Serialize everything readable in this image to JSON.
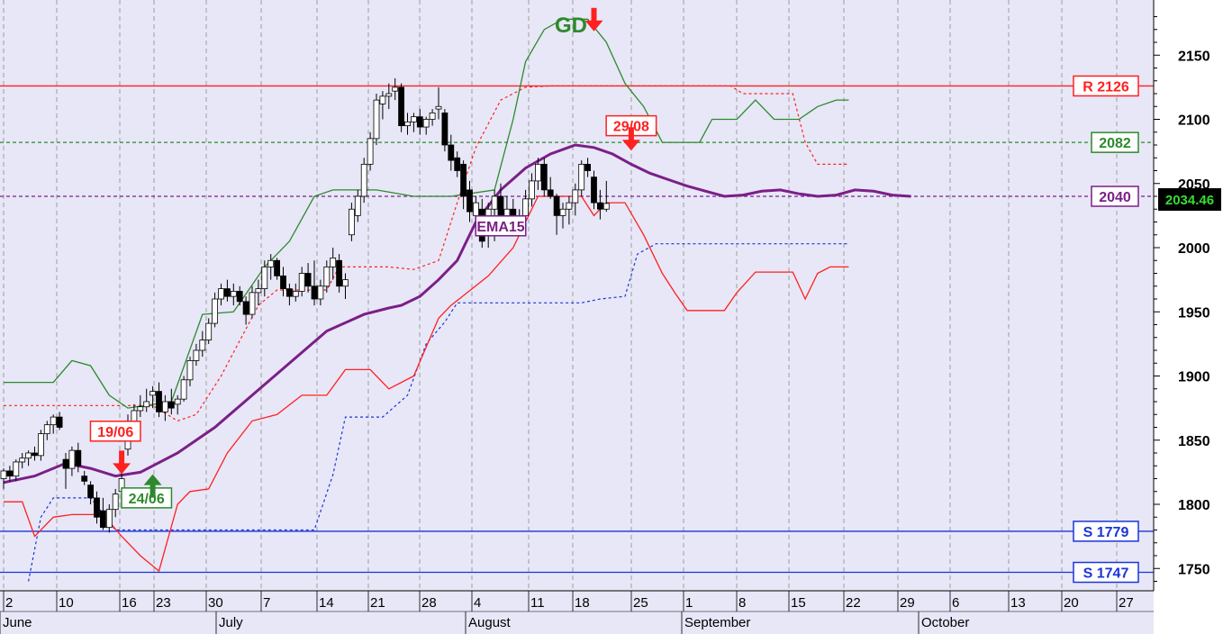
{
  "chart_data": {
    "type": "candlestick",
    "title": "",
    "xlabel": "",
    "ylabel": "",
    "ylim": [
      1735,
      2190
    ],
    "yticks": [
      1750,
      1800,
      1850,
      1900,
      1950,
      2000,
      2050,
      2100,
      2150
    ],
    "day_ticks": [
      "2",
      "10",
      "16",
      "23",
      "30",
      "7",
      "14",
      "21",
      "28",
      "4",
      "11",
      "18",
      "25",
      "1",
      "8",
      "15",
      "22",
      "29",
      "6",
      "13",
      "20",
      "27"
    ],
    "months": [
      "June",
      "July",
      "August",
      "September",
      "October"
    ],
    "last_price": "2034.46",
    "candles": [
      [
        1820,
        1828,
        1812,
        1826
      ],
      [
        1826,
        1830,
        1818,
        1822
      ],
      [
        1822,
        1835,
        1818,
        1833
      ],
      [
        1833,
        1840,
        1828,
        1836
      ],
      [
        1836,
        1842,
        1830,
        1840
      ],
      [
        1840,
        1845,
        1834,
        1838
      ],
      [
        1838,
        1858,
        1834,
        1855
      ],
      [
        1855,
        1865,
        1850,
        1862
      ],
      [
        1862,
        1870,
        1855,
        1868
      ],
      [
        1868,
        1872,
        1858,
        1860
      ],
      [
        1835,
        1840,
        1812,
        1828
      ],
      [
        1828,
        1845,
        1822,
        1842
      ],
      [
        1842,
        1848,
        1825,
        1830
      ],
      [
        1822,
        1826,
        1815,
        1818
      ],
      [
        1815,
        1818,
        1800,
        1805
      ],
      [
        1805,
        1810,
        1785,
        1790
      ],
      [
        1795,
        1805,
        1780,
        1782
      ],
      [
        1782,
        1800,
        1778,
        1796
      ],
      [
        1796,
        1812,
        1790,
        1808
      ],
      [
        1810,
        1825,
        1805,
        1820
      ],
      [
        1843,
        1870,
        1838,
        1865
      ],
      [
        1865,
        1878,
        1860,
        1873
      ],
      [
        1873,
        1885,
        1868,
        1876
      ],
      [
        1876,
        1890,
        1872,
        1880
      ],
      [
        1885,
        1892,
        1875,
        1888
      ],
      [
        1888,
        1895,
        1868,
        1872
      ],
      [
        1872,
        1885,
        1865,
        1880
      ],
      [
        1880,
        1890,
        1870,
        1875
      ],
      [
        1878,
        1885,
        1870,
        1882
      ],
      [
        1882,
        1900,
        1880,
        1897
      ],
      [
        1897,
        1915,
        1892,
        1912
      ],
      [
        1912,
        1925,
        1908,
        1920
      ],
      [
        1920,
        1935,
        1915,
        1928
      ],
      [
        1928,
        1945,
        1925,
        1941
      ],
      [
        1941,
        1965,
        1938,
        1960
      ],
      [
        1960,
        1972,
        1955,
        1968
      ],
      [
        1968,
        1975,
        1958,
        1962
      ],
      [
        1962,
        1972,
        1955,
        1966
      ],
      [
        1966,
        1970,
        1955,
        1958
      ],
      [
        1958,
        1962,
        1940,
        1948
      ],
      [
        1948,
        1970,
        1945,
        1965
      ],
      [
        1965,
        1975,
        1955,
        1968
      ],
      [
        1968,
        1990,
        1962,
        1985
      ],
      [
        1985,
        1995,
        1975,
        1990
      ],
      [
        1990,
        1992,
        1975,
        1978
      ],
      [
        1978,
        1985,
        1962,
        1968
      ],
      [
        1968,
        1972,
        1955,
        1962
      ],
      [
        1962,
        1972,
        1958,
        1966
      ],
      [
        1966,
        1985,
        1962,
        1980
      ],
      [
        1980,
        1988,
        1965,
        1970
      ],
      [
        1970,
        1990,
        1955,
        1960
      ],
      [
        1960,
        1975,
        1955,
        1970
      ],
      [
        1970,
        1990,
        1965,
        1985
      ],
      [
        1985,
        2000,
        1975,
        1992
      ],
      [
        1990,
        1995,
        1965,
        1970
      ],
      [
        1970,
        1980,
        1960,
        1975
      ],
      [
        2010,
        2035,
        2005,
        2030
      ],
      [
        2025,
        2045,
        2020,
        2040
      ],
      [
        2040,
        2070,
        2035,
        2065
      ],
      [
        2065,
        2090,
        2060,
        2085
      ],
      [
        2085,
        2120,
        2080,
        2115
      ],
      [
        2112,
        2122,
        2100,
        2118
      ],
      [
        2118,
        2128,
        2108,
        2120
      ],
      [
        2122,
        2132,
        2115,
        2125
      ],
      [
        2125,
        2128,
        2090,
        2095
      ],
      [
        2095,
        2105,
        2088,
        2098
      ],
      [
        2098,
        2105,
        2090,
        2102
      ],
      [
        2102,
        2108,
        2088,
        2094
      ],
      [
        2094,
        2102,
        2088,
        2100
      ],
      [
        2100,
        2108,
        2095,
        2105
      ],
      [
        2108,
        2125,
        2100,
        2110
      ],
      [
        2105,
        2108,
        2075,
        2080
      ],
      [
        2080,
        2088,
        2060,
        2068
      ],
      [
        2070,
        2075,
        2055,
        2060
      ],
      [
        2065,
        2068,
        2030,
        2040
      ],
      [
        2045,
        2052,
        2020,
        2028
      ],
      [
        2025,
        2040,
        2018,
        2035
      ],
      [
        2030,
        2038,
        2000,
        2005
      ],
      [
        2010,
        2035,
        2000,
        2030
      ],
      [
        2030,
        2045,
        2005,
        2040
      ],
      [
        2040,
        2050,
        2010,
        2025
      ],
      [
        2025,
        2040,
        2015,
        2030
      ],
      [
        2030,
        2038,
        2010,
        2018
      ],
      [
        2018,
        2030,
        2010,
        2025
      ],
      [
        2025,
        2045,
        2018,
        2038
      ],
      [
        2038,
        2058,
        2032,
        2052
      ],
      [
        2052,
        2070,
        2045,
        2065
      ],
      [
        2065,
        2070,
        2040,
        2045
      ],
      [
        2045,
        2055,
        2038,
        2040
      ],
      [
        2040,
        2042,
        2010,
        2025
      ],
      [
        2025,
        2035,
        2015,
        2030
      ],
      [
        2030,
        2040,
        2018,
        2035
      ],
      [
        2035,
        2050,
        2025,
        2045
      ],
      [
        2045,
        2068,
        2040,
        2065
      ],
      [
        2065,
        2070,
        2055,
        2060
      ],
      [
        2055,
        2060,
        2030,
        2035
      ],
      [
        2035,
        2045,
        2022,
        2030
      ],
      [
        2030,
        2052,
        2028,
        2034.46
      ]
    ],
    "ema15": {
      "name": "EMA15",
      "color": "#7b1f87",
      "points": [
        [
          0,
          1817
        ],
        [
          5,
          1822
        ],
        [
          10,
          1832
        ],
        [
          14,
          1828
        ],
        [
          18,
          1822
        ],
        [
          22,
          1825
        ],
        [
          28,
          1840
        ],
        [
          34,
          1860
        ],
        [
          40,
          1885
        ],
        [
          46,
          1910
        ],
        [
          52,
          1935
        ],
        [
          58,
          1948
        ],
        [
          62,
          1953
        ],
        [
          64,
          1955
        ],
        [
          67,
          1962
        ],
        [
          70,
          1975
        ],
        [
          73,
          1990
        ],
        [
          76,
          2020
        ],
        [
          80,
          2045
        ],
        [
          84,
          2062
        ],
        [
          88,
          2073
        ],
        [
          92,
          2080
        ],
        [
          95,
          2078
        ],
        [
          98,
          2073
        ],
        [
          101,
          2065
        ],
        [
          104,
          2058
        ],
        [
          107,
          2053
        ],
        [
          110,
          2048
        ],
        [
          113,
          2044
        ],
        [
          116,
          2040
        ],
        [
          119,
          2041
        ],
        [
          122,
          2044
        ],
        [
          125,
          2045
        ],
        [
          128,
          2042
        ],
        [
          131,
          2040
        ],
        [
          134,
          2041
        ],
        [
          137,
          2045
        ],
        [
          140,
          2044
        ],
        [
          143,
          2041
        ],
        [
          146,
          2040
        ]
      ]
    },
    "upper_band": {
      "color": "#2c8a2c",
      "points": [
        [
          0,
          1895
        ],
        [
          8,
          1895
        ],
        [
          11,
          1912
        ],
        [
          14,
          1908
        ],
        [
          17,
          1885
        ],
        [
          20,
          1875
        ],
        [
          27,
          1880
        ],
        [
          32,
          1948
        ],
        [
          37,
          1950
        ],
        [
          42,
          1985
        ],
        [
          46,
          2005
        ],
        [
          50,
          2040
        ],
        [
          53,
          2045
        ],
        [
          60,
          2045
        ],
        [
          66,
          2040
        ],
        [
          72,
          2040
        ],
        [
          79,
          2045
        ],
        [
          82,
          2100
        ],
        [
          84,
          2145
        ],
        [
          87,
          2170
        ],
        [
          90,
          2178
        ],
        [
          94,
          2178
        ],
        [
          97,
          2160
        ],
        [
          100,
          2128
        ],
        [
          103,
          2110
        ],
        [
          106,
          2082
        ],
        [
          112,
          2082
        ],
        [
          114,
          2100
        ],
        [
          118,
          2100
        ],
        [
          121,
          2115
        ],
        [
          124,
          2100
        ],
        [
          128,
          2100
        ],
        [
          131,
          2110
        ],
        [
          134,
          2115
        ],
        [
          136,
          2115
        ]
      ]
    },
    "lower_band": {
      "color": "#ff2020",
      "points": [
        [
          0,
          1802
        ],
        [
          3,
          1802
        ],
        [
          5,
          1775
        ],
        [
          8,
          1790
        ],
        [
          11,
          1792
        ],
        [
          16,
          1792
        ],
        [
          19,
          1775
        ],
        [
          22,
          1760
        ],
        [
          25,
          1748
        ],
        [
          28,
          1800
        ],
        [
          30,
          1810
        ],
        [
          33,
          1812
        ],
        [
          36,
          1840
        ],
        [
          40,
          1865
        ],
        [
          44,
          1870
        ],
        [
          48,
          1885
        ],
        [
          52,
          1885
        ],
        [
          55,
          1905
        ],
        [
          59,
          1905
        ],
        [
          62,
          1890
        ],
        [
          66,
          1900
        ],
        [
          70,
          1945
        ],
        [
          72,
          1955
        ],
        [
          78,
          1978
        ],
        [
          82,
          2000
        ],
        [
          86,
          2040
        ],
        [
          93,
          2040
        ],
        [
          95,
          2025
        ],
        [
          97,
          2035
        ],
        [
          100,
          2035
        ],
        [
          103,
          2010
        ],
        [
          106,
          1980
        ],
        [
          108,
          1965
        ],
        [
          110,
          1951
        ],
        [
          116,
          1951
        ],
        [
          118,
          1965
        ],
        [
          121,
          1981
        ],
        [
          127,
          1981
        ],
        [
          129,
          1960
        ],
        [
          131,
          1980
        ],
        [
          133,
          1985
        ],
        [
          136,
          1985
        ]
      ]
    },
    "resistance_dashed": {
      "color": "#ff2020",
      "points": [
        [
          0,
          1877
        ],
        [
          24,
          1877
        ],
        [
          28,
          1865
        ],
        [
          31,
          1870
        ],
        [
          35,
          1900
        ],
        [
          41,
          1955
        ],
        [
          44,
          1967
        ],
        [
          52,
          1967
        ],
        [
          54,
          1985
        ],
        [
          62,
          1985
        ],
        [
          66,
          1983
        ],
        [
          70,
          1990
        ],
        [
          73,
          2035
        ],
        [
          76,
          2078
        ],
        [
          80,
          2115
        ],
        [
          84,
          2125
        ],
        [
          88,
          2126
        ],
        [
          117,
          2126
        ],
        [
          119,
          2120
        ],
        [
          127,
          2120
        ],
        [
          129,
          2082
        ],
        [
          131,
          2065
        ],
        [
          136,
          2065
        ]
      ]
    },
    "support_dashed": {
      "color": "#1a35d8",
      "points": [
        [
          4,
          1740
        ],
        [
          6,
          1790
        ],
        [
          8,
          1805
        ],
        [
          14,
          1805
        ],
        [
          18,
          1780
        ],
        [
          50,
          1780
        ],
        [
          53,
          1823
        ],
        [
          55,
          1868
        ],
        [
          61,
          1868
        ],
        [
          65,
          1885
        ],
        [
          68,
          1925
        ],
        [
          71,
          1942
        ],
        [
          73,
          1957
        ],
        [
          93,
          1957
        ],
        [
          96,
          1960
        ],
        [
          100,
          1962
        ],
        [
          102,
          1995
        ],
        [
          105,
          2003
        ],
        [
          136,
          2003
        ]
      ]
    },
    "levels": [
      {
        "label": "R 2126",
        "value": 2126,
        "color": "#ff2020",
        "style": "solid",
        "border": "#ff2020",
        "bg": "#ffffff"
      },
      {
        "label": "2082",
        "value": 2082,
        "color": "#2c8a2c",
        "style": "dashed",
        "border": "#2c8a2c",
        "bg": "#ffffff"
      },
      {
        "label": "2040",
        "value": 2040,
        "color": "#7b1f87",
        "style": "dashed",
        "border": "#7b1f87",
        "bg": "#ffffff"
      },
      {
        "label": "S 1779",
        "value": 1779,
        "color": "#1a35d8",
        "style": "solid",
        "border": "#1a35d8",
        "bg": "#ffffff"
      },
      {
        "label": "S 1747",
        "value": 1747,
        "color": "#1a35d8",
        "style": "solid",
        "border": "#1a35d8",
        "bg": "#ffffff"
      }
    ],
    "annotations": [
      {
        "text": "19/06",
        "color": "#ff2020",
        "x": 18,
        "y": 1857
      },
      {
        "text": "24/06",
        "color": "#2c8a2c",
        "x": 23,
        "y": 1805
      },
      {
        "text": "29/08",
        "color": "#ff2020",
        "x": 101,
        "y": 2095
      },
      {
        "text": "EMA15",
        "color": "#7b1f87",
        "x": 80,
        "y": 2017
      }
    ],
    "signals": [
      {
        "type": "down",
        "color": "#ff2020",
        "x": 19,
        "y": 1825
      },
      {
        "type": "up",
        "color": "#2c8a2c",
        "x": 24,
        "y": 1822
      },
      {
        "type": "down",
        "color": "#ff2020",
        "x": 95,
        "y": 2170
      },
      {
        "type": "down",
        "color": "#ff2020",
        "x": 101,
        "y": 2077
      }
    ],
    "gd_label": "GD",
    "colors": {
      "background": "#e7e7f7",
      "grid": "#9c9c9c",
      "bull": "#ffffff",
      "bear": "#000000",
      "price_box": "#000000",
      "price_text": "#33dd33"
    }
  }
}
